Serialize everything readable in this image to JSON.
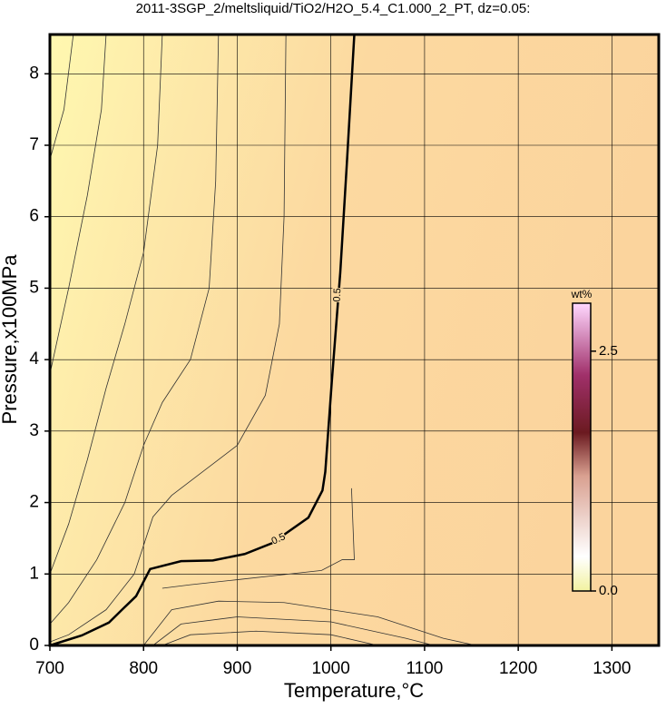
{
  "chart_data": {
    "type": "contour",
    "title": "2011-3SGP_2/meltsliquid/TiO2/H2O_5.4_C1.000_2_PT, dz=0.05:",
    "x_label": "Temperature,°C",
    "y_label": "Pressure,x100MPa",
    "xlim": [
      700,
      1350
    ],
    "ylim": [
      0,
      8.55
    ],
    "xticks": [
      700,
      800,
      900,
      1000,
      1100,
      1200,
      1300
    ],
    "yticks": [
      0,
      1,
      2,
      3,
      4,
      5,
      6,
      7,
      8
    ],
    "grid": true,
    "series": [
      {
        "level": 0.5,
        "level_label": "0.5",
        "color": "#000000",
        "x": [
          700,
          734,
          763,
          777,
          792,
          807,
          840,
          874,
          908,
          937,
          976,
          991,
          994,
          1001,
          1010,
          1017,
          1025
        ],
        "y": [
          0,
          0.14,
          0.32,
          0.5,
          0.69,
          1.07,
          1.18,
          1.19,
          1.28,
          1.43,
          1.79,
          2.17,
          2.43,
          3.7,
          5.22,
          6.74,
          8.55
        ]
      },
      {
        "color": "#333333",
        "x": [
          1022,
          1025,
          1012,
          990,
          900,
          850,
          820
        ],
        "y": [
          2.2,
          1.2,
          1.2,
          1.05,
          0.92,
          0.85,
          0.8
        ]
      },
      {
        "color": "#333333",
        "x": [
          800,
          830,
          880,
          950,
          1050,
          1120,
          1155
        ],
        "y": [
          0,
          0.5,
          0.62,
          0.6,
          0.4,
          0.1,
          0
        ]
      },
      {
        "color": "#333333",
        "x": [
          810,
          840,
          900,
          1000,
          1080,
          1110
        ],
        "y": [
          0,
          0.3,
          0.4,
          0.33,
          0.1,
          0
        ]
      },
      {
        "color": "#333333",
        "x": [
          820,
          850,
          920,
          1000,
          1050
        ],
        "y": [
          0,
          0.15,
          0.2,
          0.15,
          0
        ]
      },
      {
        "color": "#333333",
        "x": [
          952,
          950,
          945,
          930,
          900,
          860,
          830,
          810,
          790,
          760,
          720,
          700
        ],
        "y": [
          8.55,
          6,
          4.5,
          3.5,
          2.8,
          2.4,
          2.1,
          1.8,
          1.0,
          0.5,
          0.15,
          0.05
        ]
      },
      {
        "color": "#333333",
        "x": [
          880,
          877,
          870,
          850,
          820,
          800,
          780,
          750,
          720,
          700
        ],
        "y": [
          8.55,
          6.5,
          5,
          4,
          3.4,
          2.8,
          2,
          1.2,
          0.6,
          0.3
        ]
      },
      {
        "color": "#333333",
        "x": [
          820,
          815,
          800,
          780,
          760,
          740,
          720,
          700
        ],
        "y": [
          8.55,
          7,
          5.5,
          4.5,
          3.6,
          2.6,
          1.7,
          1.0
        ]
      },
      {
        "color": "#333333",
        "x": [
          760,
          755,
          740,
          720,
          700
        ],
        "y": [
          8.55,
          7.5,
          6.3,
          5,
          3.8
        ]
      },
      {
        "color": "#333333",
        "x": [
          725,
          715,
          700
        ],
        "y": [
          8.55,
          7.5,
          6.8
        ]
      }
    ],
    "colorbar": {
      "label": "wt%",
      "clim": [
        0,
        3.0
      ],
      "ticks": [
        {
          "value": 0,
          "label": "0.0"
        },
        2.5
      ]
    }
  }
}
